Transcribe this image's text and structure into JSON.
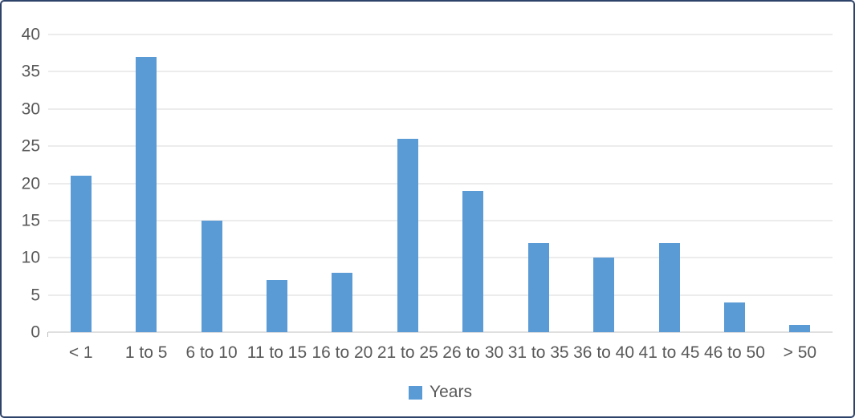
{
  "chart_data": {
    "type": "bar",
    "categories": [
      "< 1",
      "1 to 5",
      "6 to 10",
      "11 to 15",
      "16 to 20",
      "21 to 25",
      "26 to 30",
      "31 to 35",
      "36 to 40",
      "41 to 45",
      "46 to 50",
      "> 50"
    ],
    "values": [
      21,
      37,
      15,
      7,
      8,
      26,
      19,
      12,
      10,
      12,
      4,
      1
    ],
    "series_name": "Years",
    "xlabel": "",
    "ylabel": "",
    "ylim": [
      0,
      40
    ],
    "ytick_step": 5,
    "yticks": [
      0,
      5,
      10,
      15,
      20,
      25,
      30,
      35,
      40
    ],
    "grid": true,
    "legend_position": "bottom"
  },
  "legend": {
    "swatch_icon": "filled-square",
    "label": "Years"
  },
  "colors": {
    "bar": "#5B9BD5",
    "frame_border": "#2E4369",
    "axis_text": "#595959",
    "gridline": "#D9D9D9",
    "axis_line": "#BFBFBF",
    "background": "#FFFFFF"
  }
}
